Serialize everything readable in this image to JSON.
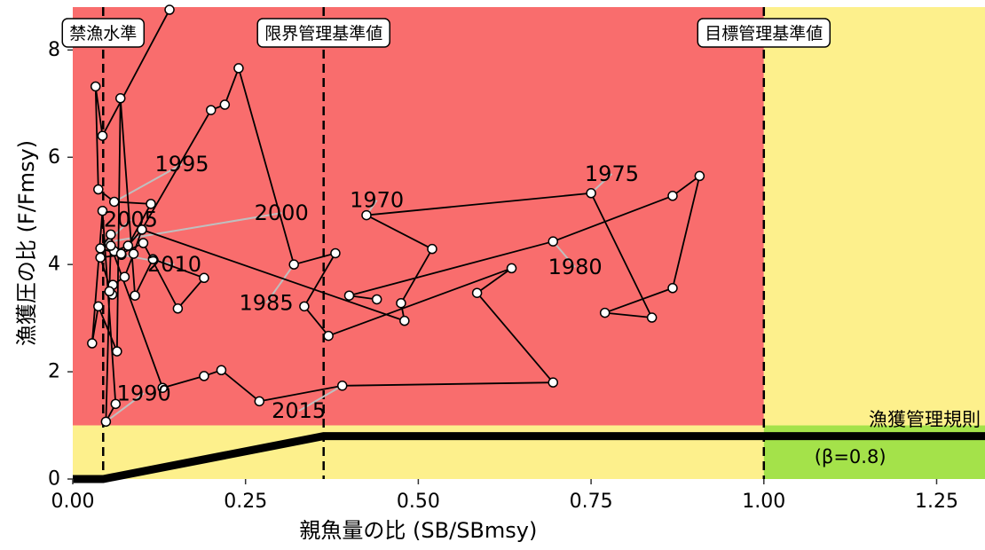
{
  "chart_data": {
    "type": "scatter",
    "xlabel": "親魚量の比 (SB/SBmsy)",
    "ylabel": "漁獲圧の比 (F/Fmsy)",
    "xlim": [
      0,
      1.32
    ],
    "ylim": [
      0,
      8.8
    ],
    "x_ticks": [
      0,
      0.25,
      0.5,
      0.75,
      1.0,
      1.25
    ],
    "x_tick_labels": [
      "0.00",
      "0.25",
      "0.50",
      "0.75",
      "1.00",
      "1.25"
    ],
    "y_ticks": [
      0,
      2,
      4,
      6,
      8
    ],
    "y_tick_labels": [
      "0",
      "2",
      "4",
      "6",
      "8"
    ],
    "grid": false,
    "legend": "none",
    "colors": {
      "red_zone": "#f96d6d",
      "yellow_zone": "#fdf08c",
      "green_zone": "#a4e24a",
      "line": "#000000",
      "point_fill": "#ffffff",
      "leader": "#bfbfbf"
    },
    "zones": [
      {
        "name": "red",
        "x": [
          0,
          1.0
        ],
        "y": [
          1.0,
          8.8
        ]
      },
      {
        "name": "yellow-left",
        "x": [
          0,
          1.0
        ],
        "y": [
          0,
          1.0
        ]
      },
      {
        "name": "yellow-right",
        "x": [
          1.0,
          1.32
        ],
        "y": [
          0,
          8.8
        ]
      },
      {
        "name": "green",
        "x": [
          1.0,
          1.32
        ],
        "y": [
          0,
          1.0
        ]
      }
    ],
    "reference_lines": [
      {
        "label": "禁漁水準",
        "x": 0.044
      },
      {
        "label": "限界管理基準値",
        "x": 0.363
      },
      {
        "label": "目標管理基準値",
        "x": 1.0
      }
    ],
    "hcr": {
      "label": "漁獲管理規則",
      "beta_label": "(β=0.8)",
      "points": [
        [
          0,
          0
        ],
        [
          0.044,
          0
        ],
        [
          0.363,
          0.8
        ],
        [
          1.32,
          0.8
        ]
      ]
    },
    "trajectory": [
      [
        0.14,
        8.75
      ],
      [
        0.043,
        6.4
      ],
      [
        0.033,
        7.32
      ],
      [
        0.037,
        5.4
      ],
      [
        0.06,
        5.17
      ],
      [
        0.113,
        5.13
      ],
      [
        0.08,
        4.35
      ],
      [
        0.06,
        4.25
      ],
      [
        0.055,
        4.56
      ],
      [
        0.04,
        4.3
      ],
      [
        0.0705,
        4.18
      ],
      [
        0.04,
        4.13
      ],
      [
        0.057,
        3.44
      ],
      [
        0.058,
        3.62
      ],
      [
        0.075,
        3.77
      ],
      [
        0.088,
        4.2
      ],
      [
        0.1,
        4.65
      ],
      [
        0.07,
        4.2
      ],
      [
        0.102,
        4.4
      ],
      [
        0.152,
        3.18
      ],
      [
        0.19,
        3.75
      ],
      [
        0.116,
        4.1
      ],
      [
        0.09,
        3.42
      ],
      [
        0.069,
        7.1
      ],
      [
        0.064,
        2.38
      ],
      [
        0.037,
        3.22
      ],
      [
        0.028,
        2.53
      ],
      [
        0.043,
        5.0
      ],
      [
        0.062,
        1.4
      ],
      [
        0.048,
        1.07
      ],
      [
        0.053,
        3.5
      ],
      [
        0.055,
        4.35
      ],
      [
        0.13,
        1.7
      ],
      [
        0.19,
        1.92
      ],
      [
        0.215,
        2.03
      ],
      [
        0.27,
        1.45
      ],
      [
        0.39,
        1.74
      ],
      [
        0.695,
        1.8
      ],
      [
        0.585,
        3.47
      ],
      [
        0.635,
        3.93
      ],
      [
        0.37,
        2.67
      ],
      [
        0.335,
        3.22
      ],
      [
        0.38,
        4.21
      ],
      [
        0.32,
        4.0
      ],
      [
        0.24,
        7.66
      ],
      [
        0.22,
        6.98
      ],
      [
        0.2,
        6.88
      ],
      [
        0.1,
        4.65
      ],
      [
        0.48,
        2.95
      ],
      [
        0.475,
        3.28
      ],
      [
        0.52,
        4.29
      ],
      [
        0.425,
        4.92
      ],
      [
        0.75,
        5.33
      ],
      [
        0.838,
        3.01
      ],
      [
        0.77,
        3.1
      ],
      [
        0.868,
        3.56
      ],
      [
        0.907,
        5.65
      ],
      [
        0.868,
        5.28
      ],
      [
        0.695,
        4.43
      ],
      [
        0.4,
        3.42
      ],
      [
        0.44,
        3.35
      ]
    ],
    "year_labels": [
      {
        "text": "1970",
        "at": [
          0.425,
          4.92
        ],
        "label_at": [
          0.44,
          5.2
        ]
      },
      {
        "text": "1975",
        "at": [
          0.75,
          5.33
        ],
        "label_at": [
          0.78,
          5.69
        ]
      },
      {
        "text": "1980",
        "at": [
          0.695,
          4.43
        ],
        "label_at": [
          0.727,
          3.95
        ]
      },
      {
        "text": "1985",
        "at": [
          0.32,
          4.0
        ],
        "label_at": [
          0.28,
          3.28
        ]
      },
      {
        "text": "1990",
        "at": [
          0.048,
          1.07
        ],
        "label_at": [
          0.103,
          1.6
        ]
      },
      {
        "text": "1995",
        "at": [
          0.06,
          5.17
        ],
        "label_at": [
          0.158,
          5.87
        ]
      },
      {
        "text": "2000",
        "at": [
          0.06,
          4.44
        ],
        "label_at": [
          0.302,
          4.96
        ]
      },
      {
        "text": "2005",
        "at": [
          0.04,
          4.3
        ],
        "label_at": [
          0.084,
          4.84
        ]
      },
      {
        "text": "2010",
        "at": [
          0.07,
          4.18
        ],
        "label_at": [
          0.147,
          4.0
        ]
      },
      {
        "text": "2015",
        "at": [
          0.39,
          1.74
        ],
        "label_at": [
          0.327,
          1.27
        ]
      }
    ]
  }
}
